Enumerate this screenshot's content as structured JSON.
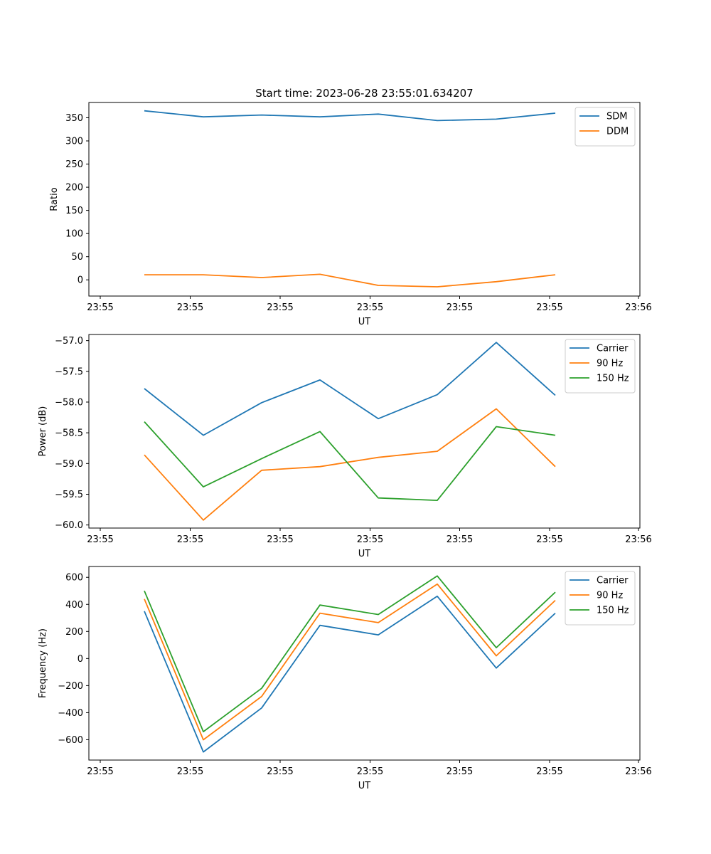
{
  "title": "Start time: 2023-06-28 23:55:01.634207",
  "chart_data": [
    {
      "type": "line",
      "xlabel": "UT",
      "ylabel": "Ratio",
      "x_tick_labels": [
        "23:55",
        "23:55",
        "23:55",
        "23:55",
        "23:55",
        "23:55",
        "23:56"
      ],
      "y_ticks": [
        0,
        50,
        100,
        150,
        200,
        250,
        300,
        350
      ],
      "ylim": [
        -35,
        383
      ],
      "legend_position": "upper right",
      "series": [
        {
          "name": "SDM",
          "color": "#1f77b4",
          "values": [
            365,
            352,
            356,
            352,
            358,
            344,
            347,
            360
          ]
        },
        {
          "name": "DDM",
          "color": "#ff7f0e",
          "values": [
            11,
            11,
            5,
            12,
            -12,
            -15,
            -4,
            11
          ]
        }
      ]
    },
    {
      "type": "line",
      "xlabel": "UT",
      "ylabel": "Power (dB)",
      "x_tick_labels": [
        "23:55",
        "23:55",
        "23:55",
        "23:55",
        "23:55",
        "23:55",
        "23:56"
      ],
      "y_ticks": [
        -60.0,
        -59.5,
        -59.0,
        -58.5,
        -58.0,
        -57.5,
        -57.0
      ],
      "y_tick_labels": [
        "−60.0",
        "−59.5",
        "−59.0",
        "−58.5",
        "−58.0",
        "−57.5",
        "−57.0"
      ],
      "ylim": [
        -60.05,
        -56.9
      ],
      "legend_position": "upper right",
      "series": [
        {
          "name": "Carrier",
          "color": "#1f77b4",
          "values": [
            -57.78,
            -58.54,
            -58.01,
            -57.64,
            -58.27,
            -57.88,
            -57.03,
            -57.89
          ]
        },
        {
          "name": "90 Hz",
          "color": "#ff7f0e",
          "values": [
            -58.86,
            -59.92,
            -59.11,
            -59.05,
            -58.9,
            -58.8,
            -58.11,
            -59.05
          ]
        },
        {
          "name": "150 Hz",
          "color": "#2ca02c",
          "values": [
            -58.32,
            -59.38,
            -58.92,
            -58.48,
            -59.56,
            -59.6,
            -58.4,
            -58.54
          ]
        }
      ]
    },
    {
      "type": "line",
      "xlabel": "UT",
      "ylabel": "Frequency (Hz)",
      "x_tick_labels": [
        "23:55",
        "23:55",
        "23:55",
        "23:55",
        "23:55",
        "23:55",
        "23:56"
      ],
      "y_ticks": [
        -600,
        -400,
        -200,
        0,
        200,
        400,
        600
      ],
      "y_tick_labels": [
        "−600",
        "−400",
        "−200",
        "0",
        "200",
        "400",
        "600"
      ],
      "ylim": [
        -750,
        680
      ],
      "legend_position": "upper right",
      "series": [
        {
          "name": "Carrier",
          "color": "#1f77b4",
          "values": [
            350,
            -690,
            -365,
            245,
            175,
            460,
            -70,
            335
          ]
        },
        {
          "name": "90 Hz",
          "color": "#ff7f0e",
          "values": [
            440,
            -600,
            -280,
            335,
            265,
            550,
            20,
            430
          ]
        },
        {
          "name": "150 Hz",
          "color": "#2ca02c",
          "values": [
            500,
            -540,
            -220,
            395,
            325,
            610,
            80,
            490
          ]
        }
      ]
    }
  ]
}
